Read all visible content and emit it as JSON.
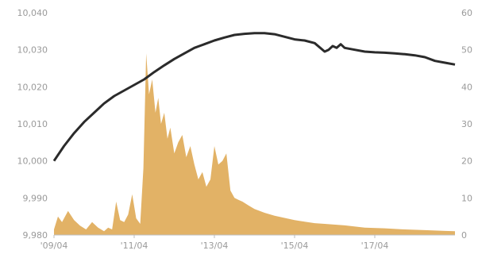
{
  "chart_data": {
    "type": "area",
    "title": "",
    "xlabel": "",
    "ylabel": "",
    "x_ticks": [
      "'09/04",
      "'11/04",
      "'13/04",
      "'15/04",
      "'17/04"
    ],
    "x_tick_positions": [
      2009.25,
      2011.25,
      2013.25,
      2015.25,
      2017.25
    ],
    "xlim": [
      2009.25,
      2019.25
    ],
    "y_left_ticks": [
      "9,980",
      "9,990",
      "10,000",
      "10,010",
      "10,020",
      "10,030",
      "10,040"
    ],
    "y_right_ticks": [
      "0",
      "10",
      "20",
      "30",
      "40",
      "50",
      "60"
    ],
    "y_left_range": [
      9980,
      10040
    ],
    "y_right_range": [
      0,
      60
    ],
    "grid": false,
    "series": [
      {
        "type": "line",
        "axis": "left",
        "color": "#2b2b2b",
        "x": [
          2009.25,
          2009.5,
          2009.75,
          2010.0,
          2010.25,
          2010.5,
          2010.75,
          2011.0,
          2011.25,
          2011.5,
          2011.75,
          2012.0,
          2012.25,
          2012.5,
          2012.75,
          2013.0,
          2013.25,
          2013.5,
          2013.75,
          2014.0,
          2014.25,
          2014.5,
          2014.75,
          2015.0,
          2015.25,
          2015.5,
          2015.75,
          2016.0,
          2016.1,
          2016.2,
          2016.3,
          2016.4,
          2016.5,
          2016.75,
          2017.0,
          2017.25,
          2017.5,
          2017.75,
          2018.0,
          2018.25,
          2018.5,
          2018.75,
          2019.0,
          2019.25
        ],
        "values": [
          10000.0,
          10004.0,
          10007.5,
          10010.5,
          10013.0,
          10015.5,
          10017.5,
          10019.0,
          10020.5,
          10022.0,
          10024.0,
          10025.8,
          10027.5,
          10029.0,
          10030.5,
          10031.5,
          10032.5,
          10033.3,
          10034.0,
          10034.3,
          10034.5,
          10034.5,
          10034.2,
          10033.5,
          10032.8,
          10032.5,
          10031.8,
          10029.5,
          10030.0,
          10031.0,
          10030.5,
          10031.5,
          10030.5,
          10030.0,
          10029.5,
          10029.3,
          10029.2,
          10029.0,
          10028.8,
          10028.5,
          10028.0,
          10027.0,
          10026.5,
          10026.0
        ]
      },
      {
        "type": "area",
        "axis": "right",
        "color": "#e2b266",
        "x": [
          2009.25,
          2009.35,
          2009.45,
          2009.6,
          2009.75,
          2009.9,
          2010.05,
          2010.2,
          2010.35,
          2010.5,
          2010.6,
          2010.7,
          2010.8,
          2010.9,
          2011.0,
          2011.1,
          2011.2,
          2011.3,
          2011.4,
          2011.48,
          2011.55,
          2011.62,
          2011.7,
          2011.78,
          2011.85,
          2011.92,
          2012.0,
          2012.08,
          2012.15,
          2012.25,
          2012.35,
          2012.45,
          2012.55,
          2012.65,
          2012.75,
          2012.85,
          2012.95,
          2013.05,
          2013.15,
          2013.25,
          2013.35,
          2013.45,
          2013.55,
          2013.65,
          2013.75,
          2013.85,
          2013.95,
          2014.1,
          2014.25,
          2014.5,
          2014.75,
          2015.0,
          2015.25,
          2015.5,
          2015.75,
          2016.0,
          2016.5,
          2017.0,
          2017.5,
          2018.0,
          2018.5,
          2019.0,
          2019.25
        ],
        "values": [
          1.5,
          5.0,
          3.5,
          6.5,
          4.0,
          2.5,
          1.5,
          3.5,
          2.0,
          1.0,
          2.0,
          1.5,
          9.0,
          4.0,
          3.5,
          5.5,
          11.0,
          4.5,
          3.0,
          18.0,
          49.0,
          38.0,
          42.0,
          33.0,
          37.0,
          30.0,
          33.0,
          26.0,
          29.0,
          22.0,
          25.0,
          27.0,
          21.0,
          24.0,
          19.0,
          15.0,
          17.0,
          13.0,
          15.0,
          24.0,
          19.0,
          20.0,
          22.0,
          12.0,
          10.0,
          9.5,
          9.0,
          8.0,
          7.0,
          6.0,
          5.2,
          4.6,
          4.0,
          3.6,
          3.2,
          3.0,
          2.6,
          2.0,
          1.8,
          1.5,
          1.3,
          1.1,
          1.0
        ]
      }
    ]
  }
}
